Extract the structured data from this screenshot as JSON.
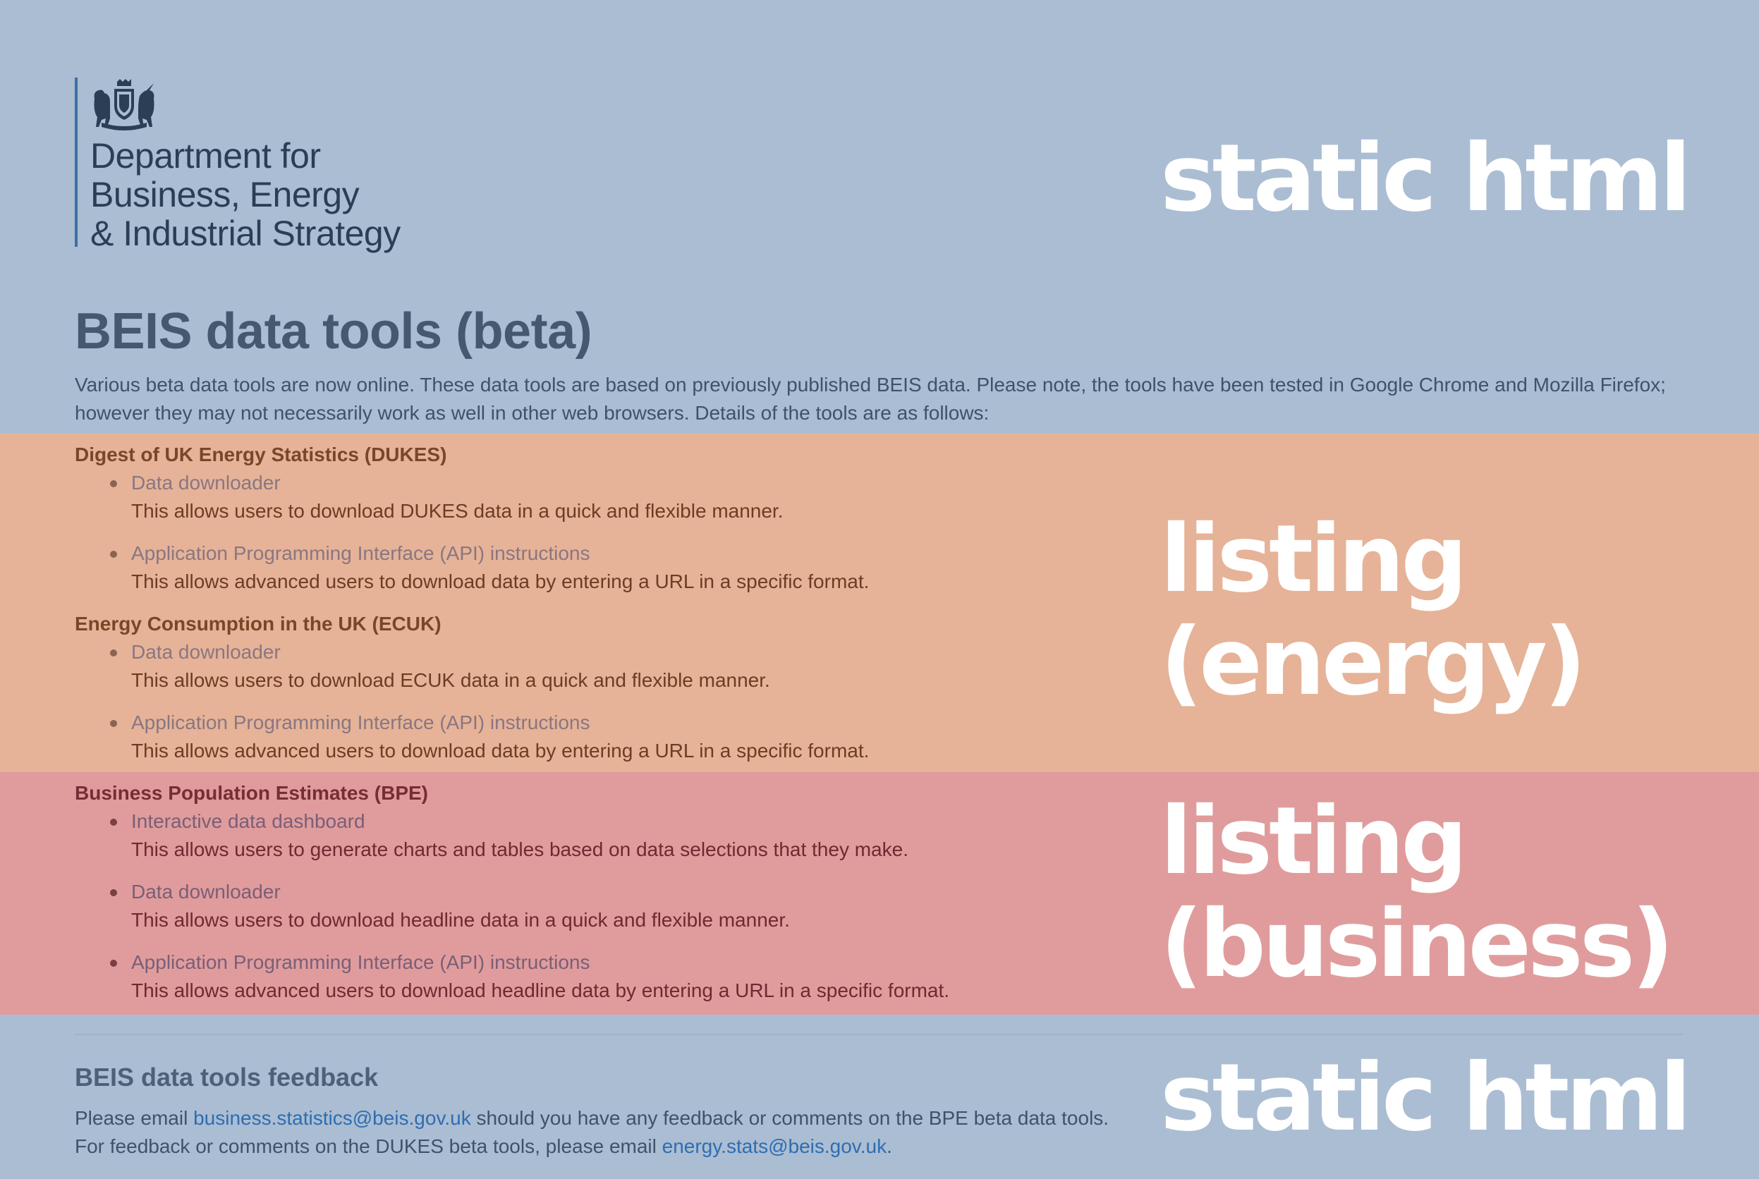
{
  "colors": {
    "static_band": "#aabdd3",
    "energy_band": "#e6b398",
    "business_band": "#e09c9c",
    "overlay_text": "#ffffff",
    "link": "#2f6db0"
  },
  "logo": {
    "line1": "Department for",
    "line2": "Business, Energy",
    "line3": "& Industrial Strategy",
    "icon": "royal-crest-icon"
  },
  "page": {
    "title": "BEIS data tools (beta)",
    "intro": "Various beta data tools are now online. These data tools are based on previously published BEIS data. Please note, the tools have been tested in Google Chrome and Mozilla Firefox; however they may not necessarily work as well in other web browsers. Details of the tools are as follows:"
  },
  "sections": [
    {
      "heading": "Digest of UK Energy Statistics (DUKES)",
      "items": [
        {
          "link": "Data downloader",
          "desc": "This allows users to download DUKES data in a quick and flexible manner."
        },
        {
          "link": "Application Programming Interface (API) instructions",
          "desc": "This allows advanced users to download data by entering a URL in a specific format."
        }
      ]
    },
    {
      "heading": "Energy Consumption in the UK (ECUK)",
      "items": [
        {
          "link": "Data downloader",
          "desc": "This allows users to download ECUK data in a quick and flexible manner."
        },
        {
          "link": "Application Programming Interface (API) instructions",
          "desc": "This allows advanced users to download data by entering a URL in a specific format."
        }
      ]
    },
    {
      "heading": "Business Population Estimates (BPE)",
      "items": [
        {
          "link": "Interactive data dashboard",
          "desc": "This allows users to generate charts and tables based on data selections that they make."
        },
        {
          "link": "Data downloader",
          "desc": "This allows users to download headline data in a quick and flexible manner."
        },
        {
          "link": "Application Programming Interface (API) instructions",
          "desc": "This allows advanced users to download headline data by entering a URL in a specific format."
        }
      ]
    }
  ],
  "feedback": {
    "heading": "BEIS data tools feedback",
    "line1_prefix": "Please email ",
    "line1_email": "business.statistics@beis.gov.uk",
    "line1_suffix": " should you have any feedback or comments on the BPE beta data tools.",
    "line2_prefix": "For feedback or comments on the DUKES beta tools, please email ",
    "line2_email": "energy.stats@beis.gov.uk",
    "line2_suffix": "."
  },
  "overlays": {
    "top": "static html",
    "energy_line1": "listing",
    "energy_line2": "(energy)",
    "business_line1": "listing",
    "business_line2": "(business)",
    "bottom": "static html"
  }
}
